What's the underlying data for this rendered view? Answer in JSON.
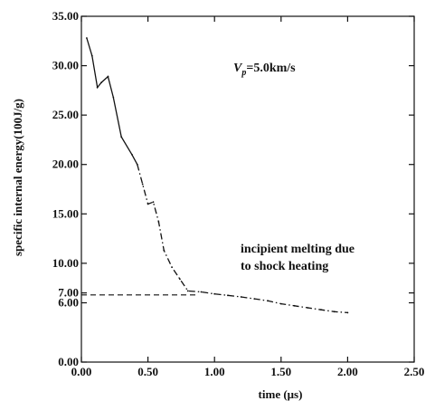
{
  "chart_data": {
    "type": "line",
    "title": "",
    "xlabel": "time (μs)",
    "ylabel": "specific internal energy(100J/g)",
    "xlim": [
      0,
      2.5
    ],
    "ylim": [
      0,
      35
    ],
    "x_ticks": [
      0,
      0.5,
      1.0,
      1.5,
      2.0,
      2.5
    ],
    "x_tick_labels": [
      "0.00",
      "0.50",
      "1.00",
      "1.50",
      "2.00",
      "2.50"
    ],
    "y_ticks": [
      0,
      6,
      7,
      10,
      15,
      20,
      25,
      30,
      35
    ],
    "y_tick_labels": [
      "0.00",
      "6.00",
      "7.00",
      "10.00",
      "15.00",
      "20.00",
      "25.00",
      "30.00",
      "35.00"
    ],
    "grid": false,
    "annotations": {
      "vp_symbol": "V",
      "vp_subscript": "p",
      "vp_value": "=5.0km/s",
      "melting_line1": "incipient melting due",
      "melting_line2": "to shock heating"
    },
    "melting_level": 6.8,
    "series": [
      {
        "x": [
          0.04,
          0.08,
          0.12,
          0.15,
          0.2,
          0.24,
          0.3,
          0.38,
          0.42,
          0.46,
          0.5,
          0.54,
          0.58,
          0.62,
          0.68,
          0.74,
          0.8,
          0.9,
          1.0,
          1.1,
          1.2,
          1.3,
          1.4,
          1.5,
          1.6,
          1.7,
          1.8,
          1.9,
          2.0
        ],
        "y": [
          32.8,
          31.0,
          27.8,
          28.3,
          28.9,
          26.8,
          22.8,
          21.0,
          20.0,
          18.0,
          16.0,
          16.2,
          14.2,
          11.3,
          9.6,
          8.4,
          7.2,
          7.1,
          6.9,
          6.75,
          6.6,
          6.4,
          6.2,
          5.9,
          5.7,
          5.5,
          5.3,
          5.1,
          5.0
        ]
      }
    ]
  }
}
